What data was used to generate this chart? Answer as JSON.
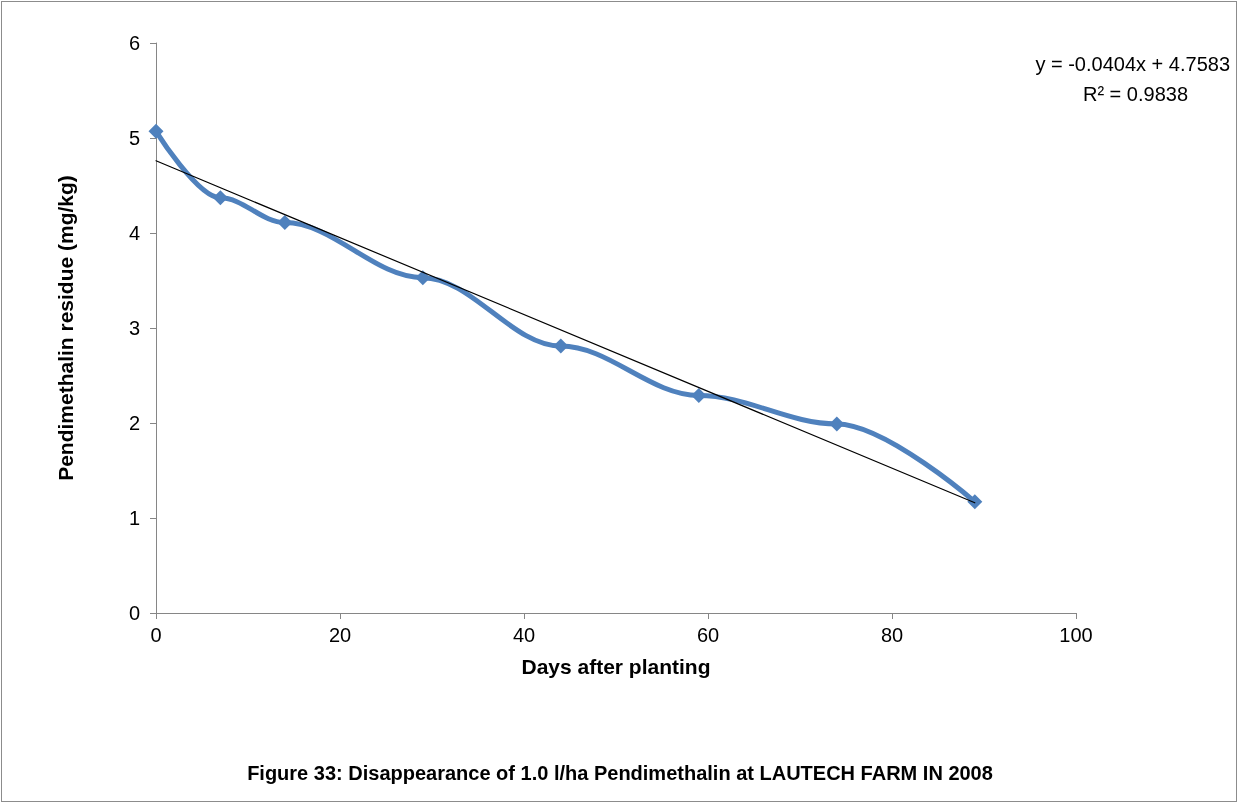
{
  "chart_data": {
    "type": "line",
    "title": "Figure 33: Disappearance of 1.0 l/ha Pendimethalin at LAUTECH FARM IN 2008",
    "xlabel": "Days after planting",
    "ylabel": "Pendimethalin residue (mg/kg)",
    "annotations": [
      "y = -0.0404x + 4.7583",
      "R² = 0.9838"
    ],
    "series": [
      {
        "color": "#4f81bd",
        "x": [
          0,
          7,
          14,
          29,
          44,
          59,
          74,
          89
        ],
        "values": [
          5.07,
          4.37,
          4.11,
          3.53,
          2.81,
          2.29,
          1.99,
          1.17
        ]
      },
      {
        "type": "line",
        "color": "#000000",
        "marker": "none",
        "x": [
          0,
          89
        ],
        "values": [
          4.76,
          1.16
        ]
      }
    ],
    "xlim": [
      0,
      100
    ],
    "xticks": [
      0,
      20,
      40,
      60,
      80,
      100
    ],
    "ylim": [
      0,
      6
    ],
    "yticks": [
      0,
      1,
      2,
      3,
      4,
      5,
      6
    ],
    "marker": "diamond",
    "grid": false
  }
}
